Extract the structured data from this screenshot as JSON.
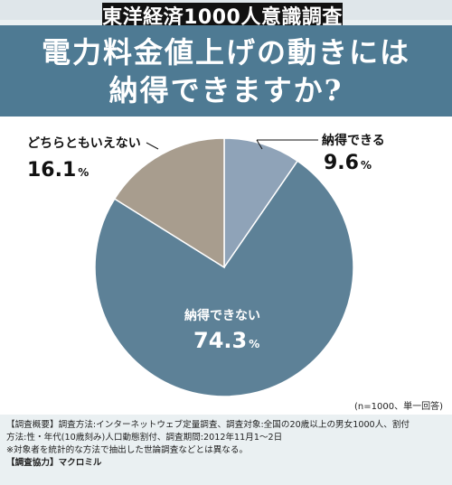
{
  "series_tag": "東洋経済1000人意識調査",
  "header": {
    "title_line1": "電力料金値上げの動きには",
    "title_line2": "納得できますか?"
  },
  "colors": {
    "slice_agree": "#8fa3b8",
    "slice_disagree": "#5d8197",
    "slice_neutral": "#a89d8e",
    "header_bg": "#4e7a93"
  },
  "chart_data": {
    "type": "pie",
    "title": "電力料金値上げの動きには納得できますか?",
    "slices": [
      {
        "label": "納得できる",
        "value": 9.6,
        "display": "9.6",
        "unit": "%"
      },
      {
        "label": "納得できない",
        "value": 74.3,
        "display": "74.3",
        "unit": "%"
      },
      {
        "label": "どちらともいえない",
        "value": 16.1,
        "display": "16.1",
        "unit": "%"
      }
    ]
  },
  "sample_note": "(n=1000、単一回答)",
  "footer": {
    "line1_bracket": "【調査概要】",
    "line1_text": "調査方法:インターネットウェブ定量調査、調査対象:全国の20歳以上の男女1000人、割付",
    "line2_text": "方法:性・年代(10歳刻み)人口動態割付、調査期間:2012年11月1〜2日",
    "line3_text": "※対象者を統計的な方法で抽出した世論調査などとは異なる。",
    "line4_bracket": "【調査協力】",
    "line4_text": "マクロミル"
  }
}
